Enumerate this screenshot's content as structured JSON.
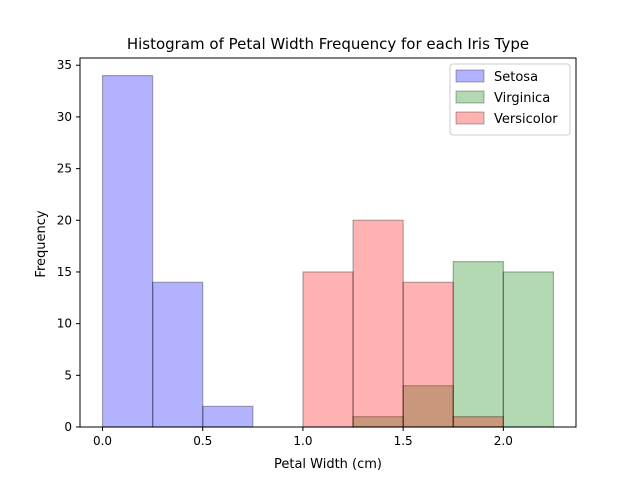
{
  "chart_data": {
    "type": "bar",
    "title": "Histogram of Petal Width Frequency for each Iris Type",
    "xlabel": "Petal Width (cm)",
    "ylabel": "Frequency",
    "xlim": [
      -0.1125,
      2.3625
    ],
    "ylim": [
      0,
      35.7
    ],
    "xticks": [
      0.0,
      0.5,
      1.0,
      1.5,
      2.0
    ],
    "xtick_labels": [
      "0.0",
      "0.5",
      "1.0",
      "1.5",
      "2.0"
    ],
    "yticks": [
      0,
      5,
      10,
      15,
      20,
      25,
      30,
      35
    ],
    "ytick_labels": [
      "0",
      "5",
      "10",
      "15",
      "20",
      "25",
      "30",
      "35"
    ],
    "bin_edges": [
      0.0,
      0.25,
      0.5,
      0.75,
      1.0,
      1.25,
      1.5,
      1.75,
      2.0,
      2.25
    ],
    "grid": false,
    "legend_position": "top-right",
    "series": [
      {
        "name": "Setosa",
        "color": "#0000ff",
        "values": [
          34,
          14,
          2,
          0,
          0,
          0,
          0,
          0,
          0
        ]
      },
      {
        "name": "Virginica",
        "color": "#008000",
        "values": [
          0,
          0,
          0,
          0,
          0,
          1,
          4,
          16,
          15
        ]
      },
      {
        "name": "Versicolor",
        "color": "#ff0000",
        "values": [
          0,
          0,
          0,
          0,
          15,
          20,
          14,
          1,
          0
        ]
      }
    ],
    "bar_alpha": 0.3
  }
}
